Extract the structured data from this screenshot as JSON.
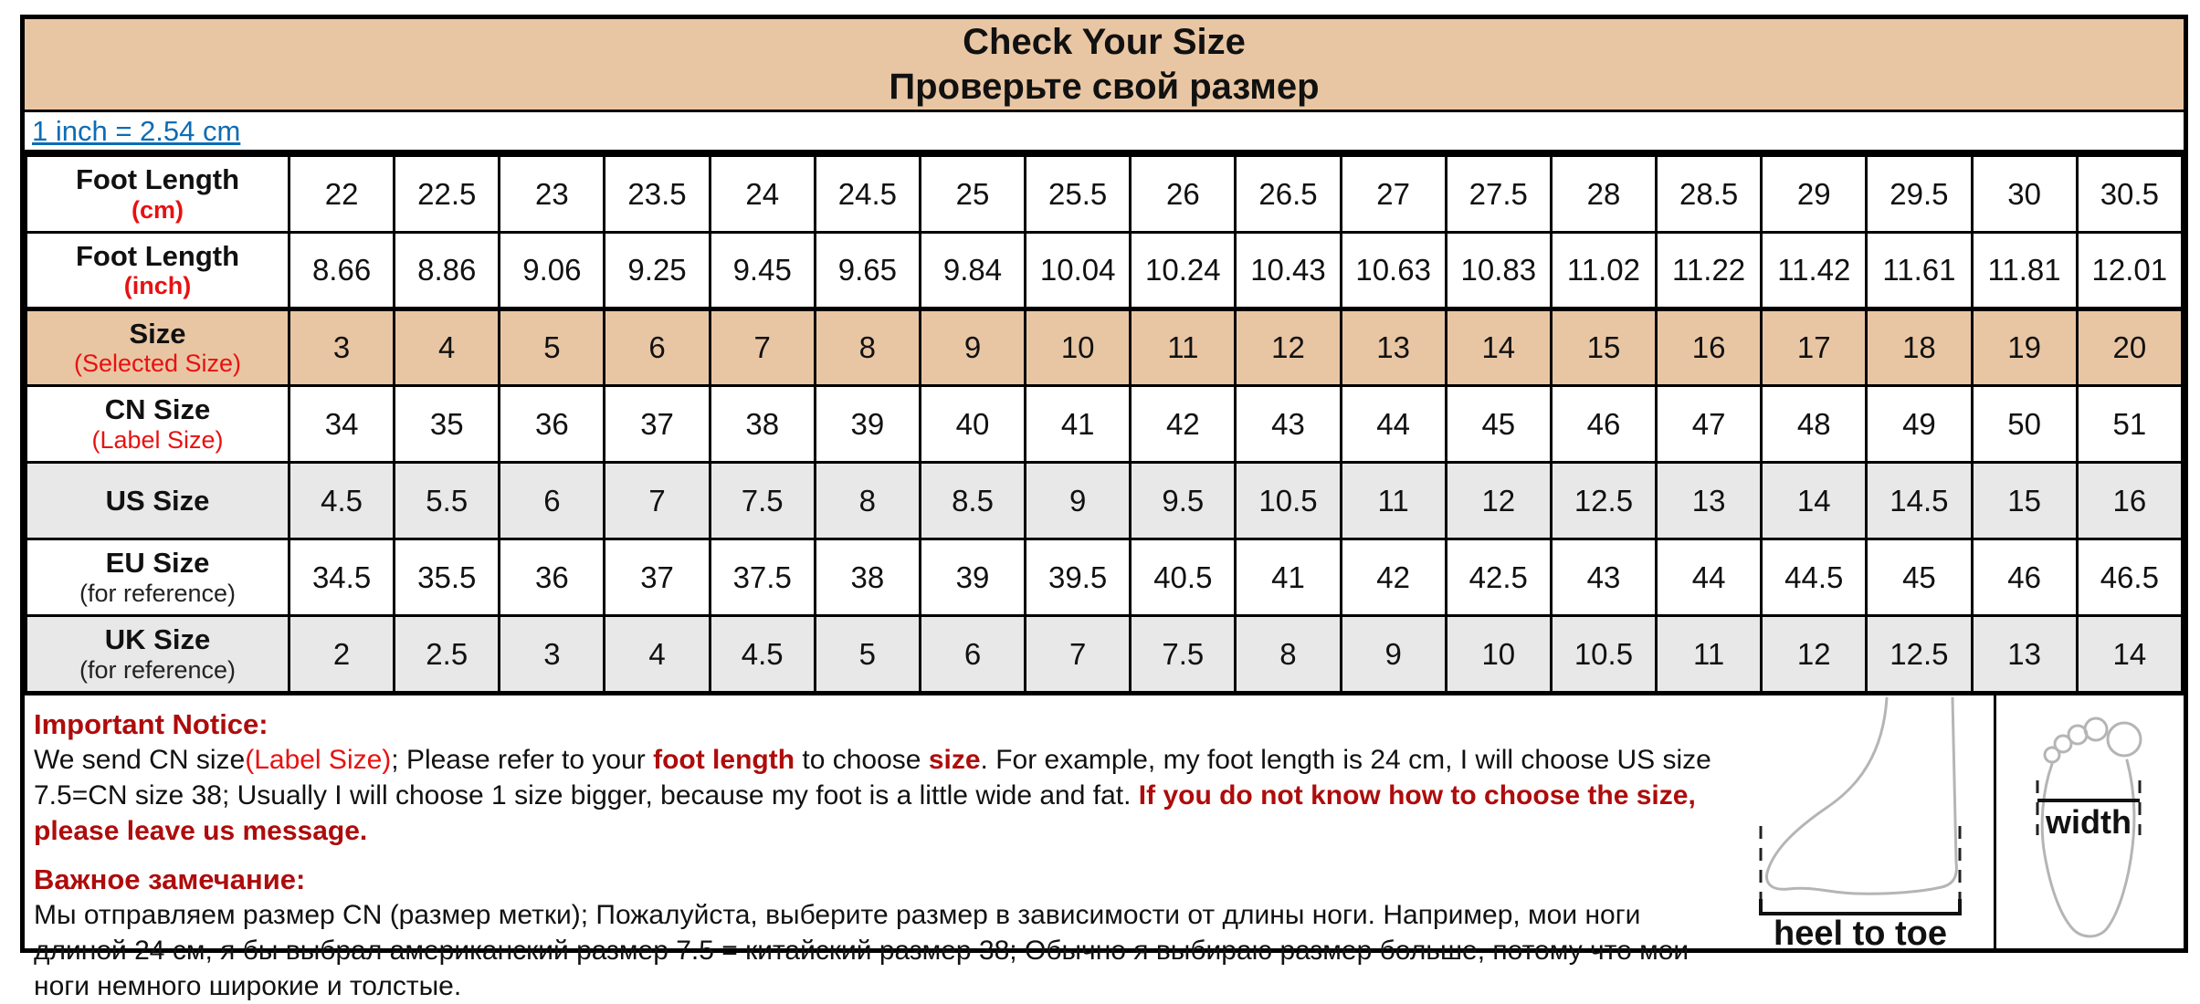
{
  "title": {
    "en": "Check Your Size",
    "ru": "Проверьте свой размер"
  },
  "conversion_link": "1 inch = 2.54 cm",
  "table": {
    "rows": [
      {
        "label": "Foot Length",
        "sublabel": "(cm)",
        "sublabel_color": "red",
        "bg": "white",
        "values": [
          "22",
          "22.5",
          "23",
          "23.5",
          "24",
          "24.5",
          "25",
          "25.5",
          "26",
          "26.5",
          "27",
          "27.5",
          "28",
          "28.5",
          "29",
          "29.5",
          "30",
          "30.5"
        ]
      },
      {
        "label": "Foot Length",
        "sublabel": "(inch)",
        "sublabel_color": "red",
        "bg": "white",
        "values": [
          "8.66",
          "8.86",
          "9.06",
          "9.25",
          "9.45",
          "9.65",
          "9.84",
          "10.04",
          "10.24",
          "10.43",
          "10.63",
          "10.83",
          "11.02",
          "11.22",
          "11.42",
          "11.61",
          "11.81",
          "12.01"
        ]
      },
      {
        "label": "Size",
        "sublabel": "(Selected Size)",
        "sublabel_color": "red",
        "bg": "tan",
        "values": [
          "3",
          "4",
          "5",
          "6",
          "7",
          "8",
          "9",
          "10",
          "11",
          "12",
          "13",
          "14",
          "15",
          "16",
          "17",
          "18",
          "19",
          "20"
        ]
      },
      {
        "label": "CN Size",
        "sublabel": "(Label Size)",
        "sublabel_color": "red",
        "bg": "white",
        "values": [
          "34",
          "35",
          "36",
          "37",
          "38",
          "39",
          "40",
          "41",
          "42",
          "43",
          "44",
          "45",
          "46",
          "47",
          "48",
          "49",
          "50",
          "51"
        ]
      },
      {
        "label": "US Size",
        "sublabel": "",
        "sublabel_color": "",
        "bg": "gray",
        "values": [
          "4.5",
          "5.5",
          "6",
          "7",
          "7.5",
          "8",
          "8.5",
          "9",
          "9.5",
          "10.5",
          "11",
          "12",
          "12.5",
          "13",
          "14",
          "14.5",
          "15",
          "16"
        ]
      },
      {
        "label": "EU Size",
        "sublabel": "(for reference)",
        "sublabel_color": "black",
        "bg": "white",
        "values": [
          "34.5",
          "35.5",
          "36",
          "37",
          "37.5",
          "38",
          "39",
          "39.5",
          "40.5",
          "41",
          "42",
          "42.5",
          "43",
          "44",
          "44.5",
          "45",
          "46",
          "46.5"
        ]
      },
      {
        "label": "UK Size",
        "sublabel": "(for reference)",
        "sublabel_color": "black",
        "bg": "gray",
        "values": [
          "2",
          "2.5",
          "3",
          "4",
          "4.5",
          "5",
          "6",
          "7",
          "7.5",
          "8",
          "9",
          "10",
          "10.5",
          "11",
          "12",
          "12.5",
          "13",
          "14"
        ]
      }
    ]
  },
  "notice_en": {
    "heading": "Important Notice:",
    "segments": [
      {
        "text": "We send CN size",
        "style": "normal"
      },
      {
        "text": "(Label Size)",
        "style": "red"
      },
      {
        "text": "; Please refer to your ",
        "style": "normal"
      },
      {
        "text": "foot length",
        "style": "redbold"
      },
      {
        "text": " to choose ",
        "style": "normal"
      },
      {
        "text": "size",
        "style": "redbold"
      },
      {
        "text": ". For example, my foot length is 24 cm, I will choose US size 7.5=CN size 38; Usually I will choose 1 size bigger, because my foot is a little wide and fat. ",
        "style": "normal"
      },
      {
        "text": "If you do not know how to choose the size, please leave us message.",
        "style": "redbold"
      }
    ]
  },
  "notice_ru": {
    "heading": "Важное замечание:",
    "body": "Мы отправляем размер CN (размер метки); Пожалуйста, выберите размер в зависимости от длины ноги. Например, мои ноги длиной 24 см, я бы выбрал американский размер 7.5 = китайский размер 38; Обычно я выбираю размер больше, потому что мои ноги немного широкие и толстые."
  },
  "diagram": {
    "heel_to_toe_label": "heel to toe",
    "width_label": "width"
  },
  "colors": {
    "header_tan": "#e9c6a3",
    "row_gray": "#e8e8e8",
    "dark_red": "#ae0c0c",
    "bright_red": "#e81111",
    "link_blue": "#0d6cb5",
    "outline_gray": "#b5b5b5"
  }
}
